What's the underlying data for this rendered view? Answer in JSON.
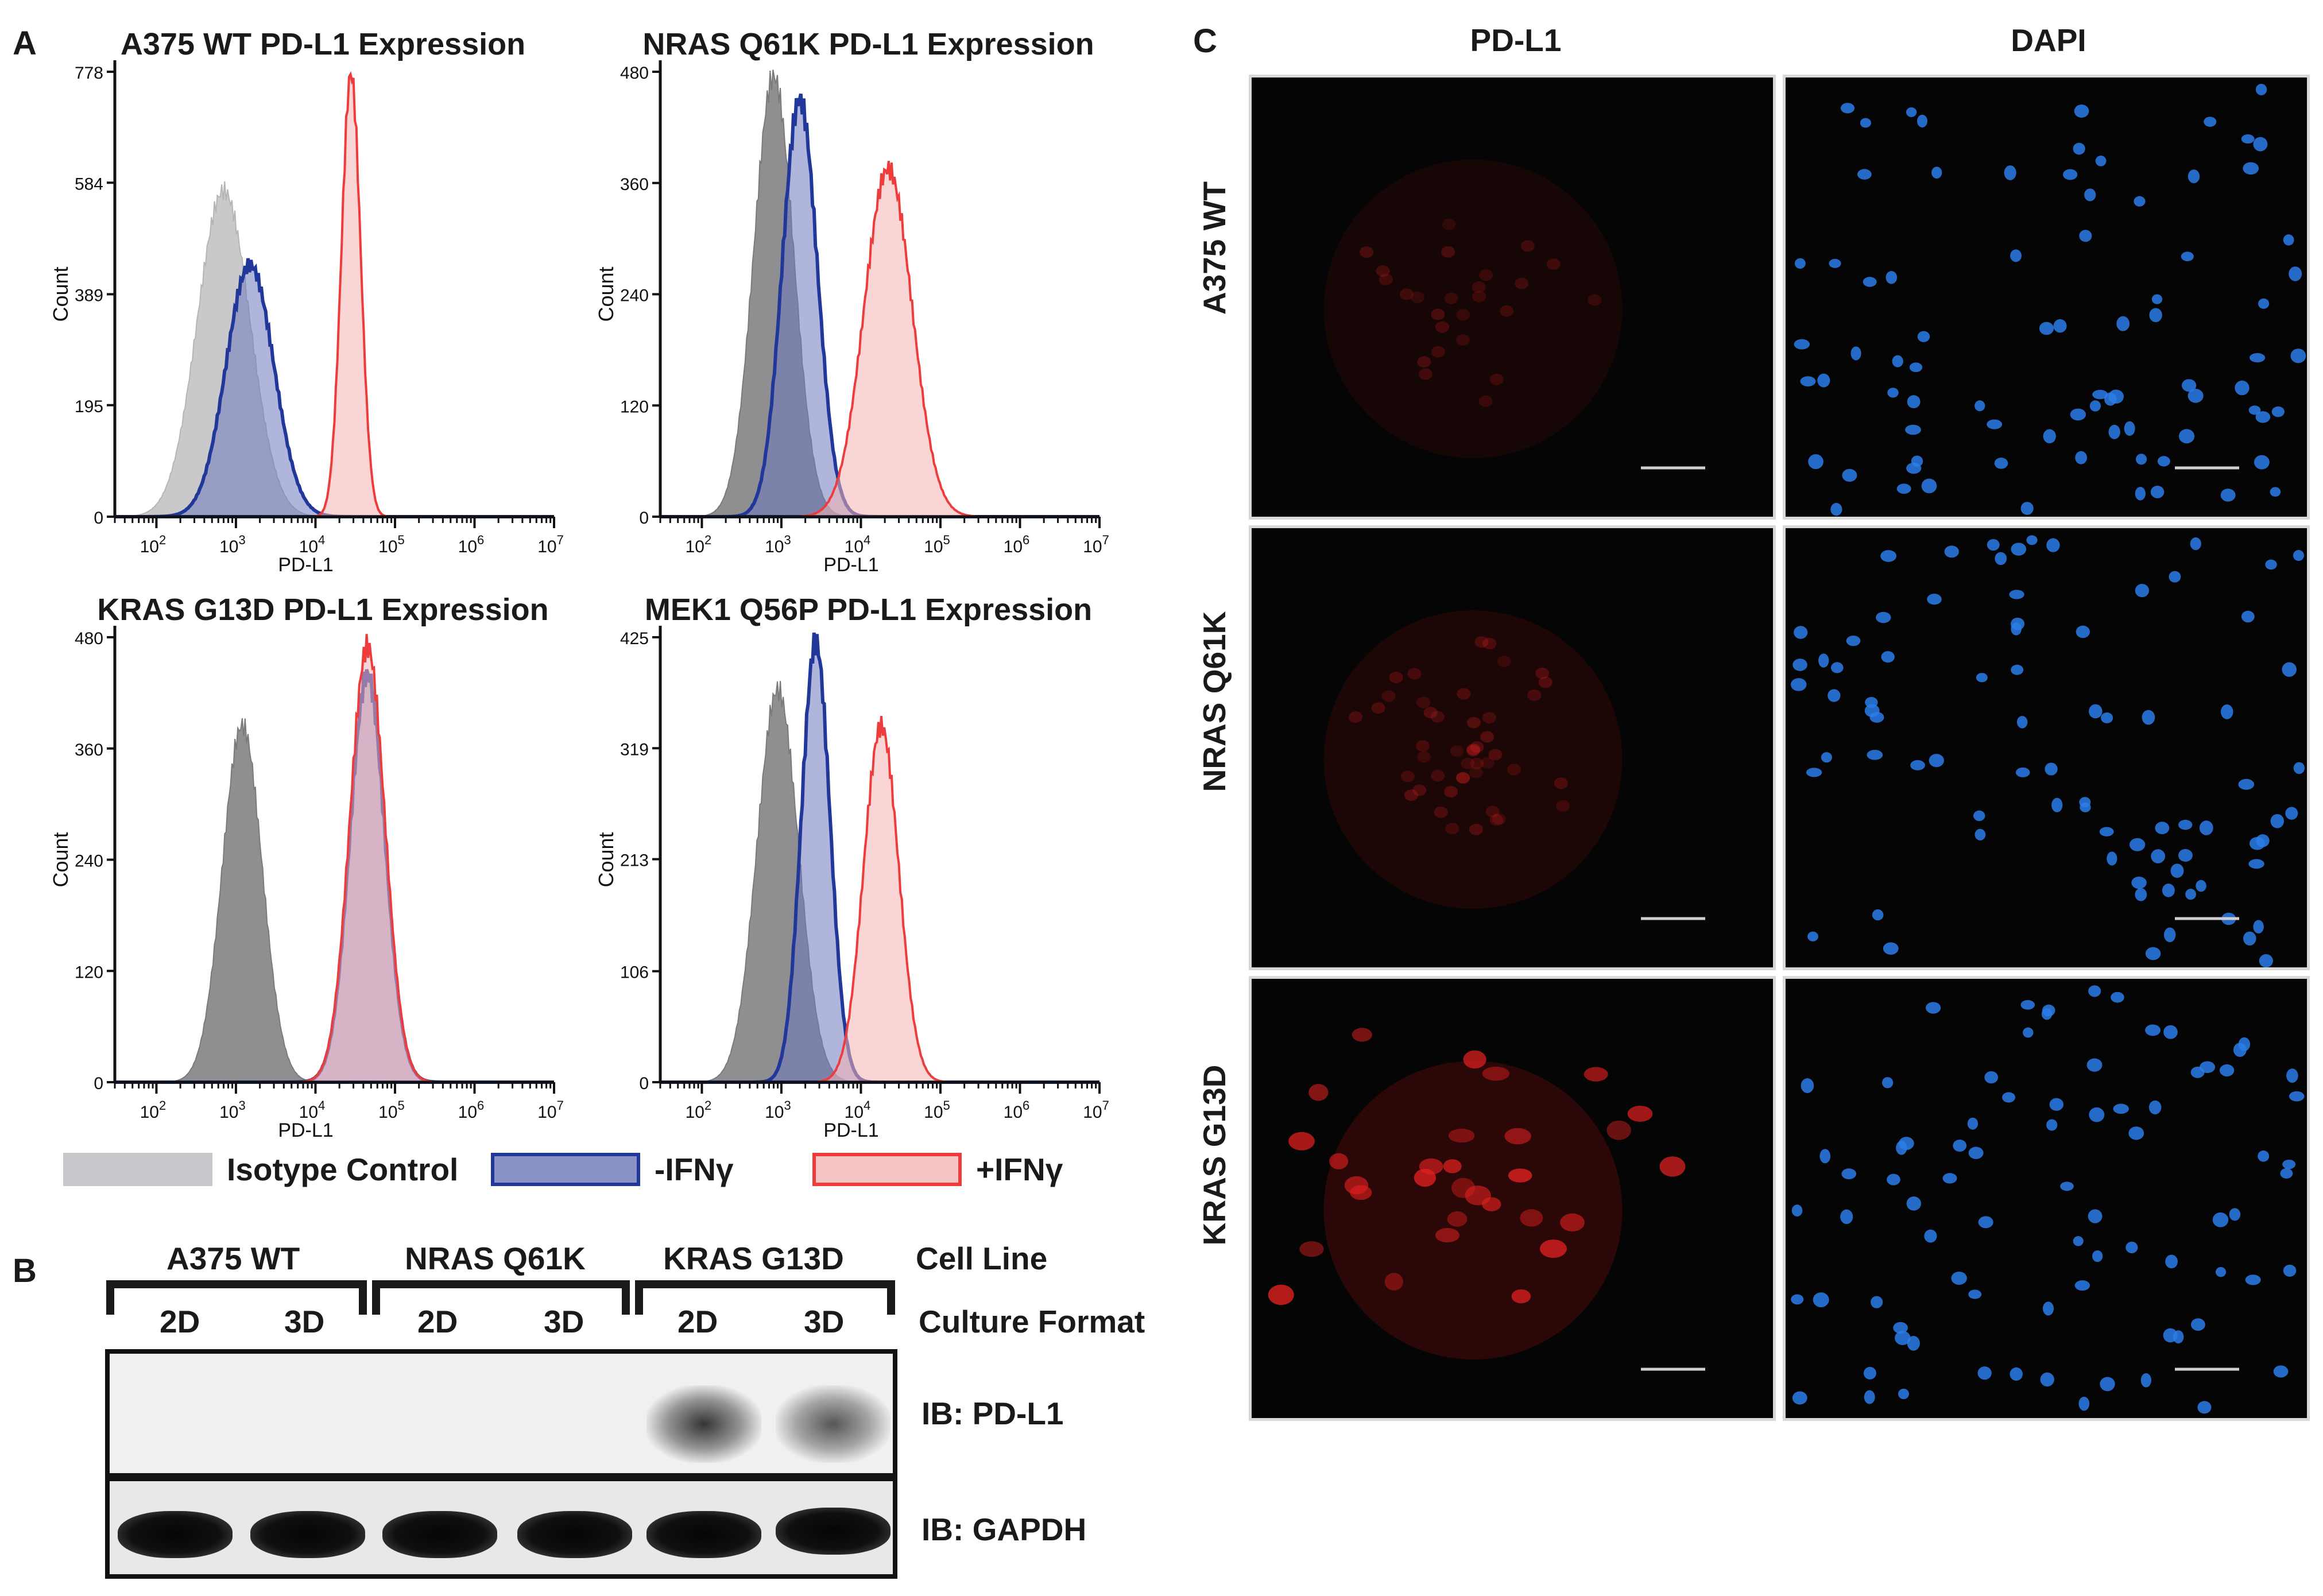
{
  "panels": {
    "A": "A",
    "B": "B",
    "C": "C"
  },
  "histograms": [
    {
      "title": "A375 WT PD-L1 Expression",
      "ylabel": "Count",
      "xlabel": "PD-L1",
      "yticks": [
        "778",
        "584",
        "389",
        "195",
        "0"
      ],
      "ymax": 778
    },
    {
      "title": "NRAS Q61K PD-L1 Expression",
      "ylabel": "Count",
      "xlabel": "PD-L1",
      "yticks": [
        "480",
        "360",
        "240",
        "120",
        "0"
      ],
      "ymax": 480
    },
    {
      "title": "KRAS G13D PD-L1 Expression",
      "ylabel": "Count",
      "xlabel": "PD-L1",
      "yticks": [
        "480",
        "360",
        "240",
        "120",
        "0"
      ],
      "ymax": 480
    },
    {
      "title": "MEK1 Q56P PD-L1 Expression",
      "ylabel": "Count",
      "xlabel": "PD-L1",
      "yticks": [
        "425",
        "319",
        "213",
        "106",
        "0"
      ],
      "ymax": 425
    }
  ],
  "xticks": [
    "10",
    "10",
    "10",
    "10",
    "10",
    "10"
  ],
  "xtick_exponents": [
    "2",
    "3",
    "4",
    "5",
    "6",
    "7"
  ],
  "legend": [
    {
      "label": "Isotype Control",
      "fill": "#c8c8cc",
      "stroke": "#c8c8cc"
    },
    {
      "label": "-IFNγ",
      "fill": "#8a93c8",
      "stroke": "#22379a"
    },
    {
      "label": "+IFNγ",
      "fill": "#f7c4c4",
      "stroke": "#ee3b3b"
    }
  ],
  "colors": {
    "isotype": "#b8b8bc",
    "minus_ifn": "#22379a",
    "plus_ifn": "#ee3b3b",
    "dapi": "#2b7de9",
    "pdl1": "#e02020"
  },
  "chart_data": [
    {
      "type": "area",
      "title": "A375 WT PD-L1 Expression",
      "xlabel": "PD-L1",
      "ylabel": "Count",
      "xscale": "log",
      "xlim": [
        30,
        10000000
      ],
      "ylim": [
        0,
        778
      ],
      "series": [
        {
          "name": "Isotype Control",
          "peak_x": 700,
          "peak_y": 570,
          "sigma_decades": 0.33
        },
        {
          "name": "-IFNγ",
          "peak_x": 1500,
          "peak_y": 440,
          "sigma_decades": 0.3
        },
        {
          "name": "+IFNγ",
          "peak_x": 28000,
          "peak_y": 775,
          "sigma_decades": 0.12
        }
      ]
    },
    {
      "type": "area",
      "title": "NRAS Q61K PD-L1 Expression",
      "xlabel": "PD-L1",
      "ylabel": "Count",
      "xscale": "log",
      "xlim": [
        30,
        10000000
      ],
      "ylim": [
        0,
        480
      ],
      "series": [
        {
          "name": "Isotype Control",
          "peak_x": 800,
          "peak_y": 475,
          "sigma_decades": 0.25
        },
        {
          "name": "-IFNγ",
          "peak_x": 1700,
          "peak_y": 450,
          "sigma_decades": 0.22
        },
        {
          "name": "+IFNγ",
          "peak_x": 22000,
          "peak_y": 375,
          "sigma_decades": 0.3
        }
      ]
    },
    {
      "type": "area",
      "title": "KRAS G13D PD-L1 Expression",
      "xlabel": "PD-L1",
      "ylabel": "Count",
      "xscale": "log",
      "xlim": [
        30,
        10000000
      ],
      "ylim": [
        0,
        480
      ],
      "series": [
        {
          "name": "Isotype Control",
          "peak_x": 1200,
          "peak_y": 385,
          "sigma_decades": 0.25
        },
        {
          "name": "-IFNγ",
          "peak_x": 45000,
          "peak_y": 440,
          "sigma_decades": 0.22
        },
        {
          "name": "+IFNγ",
          "peak_x": 45000,
          "peak_y": 470,
          "sigma_decades": 0.22
        }
      ]
    },
    {
      "type": "area",
      "title": "MEK1 Q56P PD-L1 Expression",
      "xlabel": "PD-L1",
      "ylabel": "Count",
      "xscale": "log",
      "xlim": [
        30,
        10000000
      ],
      "ylim": [
        0,
        425
      ],
      "series": [
        {
          "name": "Isotype Control",
          "peak_x": 900,
          "peak_y": 375,
          "sigma_decades": 0.26
        },
        {
          "name": "-IFNγ",
          "peak_x": 2700,
          "peak_y": 420,
          "sigma_decades": 0.18
        },
        {
          "name": "+IFNγ",
          "peak_x": 18000,
          "peak_y": 340,
          "sigma_decades": 0.22
        }
      ]
    }
  ],
  "western": {
    "cell_lines": [
      "A375 WT",
      "NRAS Q61K",
      "KRAS G13D"
    ],
    "formats": [
      "2D",
      "3D",
      "2D",
      "3D",
      "2D",
      "3D"
    ],
    "row_label_cell_line": "Cell Line",
    "row_label_culture": "Culture Format",
    "blots": [
      "IB: PD-L1",
      "IB: GAPDH"
    ],
    "pdl1_intensity": [
      0,
      0,
      0,
      0,
      0.85,
      0.7
    ]
  },
  "microscopy": {
    "columns": [
      "PD-L1",
      "DAPI"
    ],
    "rows": [
      "A375 WT",
      "NRAS Q61K",
      "KRAS G13D"
    ]
  }
}
